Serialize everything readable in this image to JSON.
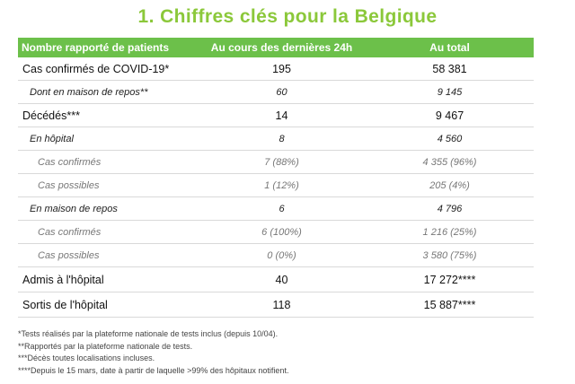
{
  "title": "1. Chiffres clés pour la Belgique",
  "table": {
    "headers": [
      "Nombre rapporté de patients",
      "Au cours des dernières 24h",
      "Au total"
    ],
    "rows": [
      {
        "label": "Cas confirmés de COVID-19*",
        "last24h": "195",
        "total": "58 381",
        "level": "main"
      },
      {
        "label": "Dont en maison de repos**",
        "last24h": "60",
        "total": "9 145",
        "level": "sub"
      },
      {
        "label": "Décédés***",
        "last24h": "14",
        "total": "9 467",
        "level": "main"
      },
      {
        "label": "En hôpital",
        "last24h": "8",
        "total": "4 560",
        "level": "sub"
      },
      {
        "label": "Cas confirmés",
        "last24h": "7 (88%)",
        "total": "4 355 (96%)",
        "level": "sub2"
      },
      {
        "label": "Cas possibles",
        "last24h": "1 (12%)",
        "total": "205 (4%)",
        "level": "sub2"
      },
      {
        "label": "En maison de repos",
        "last24h": "6",
        "total": "4 796",
        "level": "sub"
      },
      {
        "label": "Cas confirmés",
        "last24h": "6 (100%)",
        "total": "1 216 (25%)",
        "level": "sub2"
      },
      {
        "label": "Cas possibles",
        "last24h": "0 (0%)",
        "total": "3 580 (75%)",
        "level": "sub2"
      },
      {
        "label": "Admis à l'hôpital",
        "last24h": "40",
        "total": "17 272****",
        "level": "main"
      },
      {
        "label": "Sortis de l'hôpital",
        "last24h": "118",
        "total": "15 887****",
        "level": "main"
      }
    ]
  },
  "notes": [
    "*Tests réalisés par la plateforme nationale de tests inclus (depuis 10/04).",
    "**Rapportés par la plateforme nationale de tests.",
    "***Décès toutes localisations incluses.",
    "****Depuis le 15 mars, date à partir de laquelle >99% des hôpitaux notifient."
  ]
}
